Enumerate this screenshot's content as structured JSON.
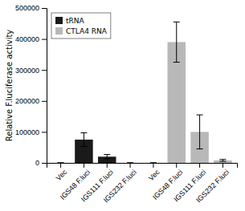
{
  "chart_data": {
    "type": "bar",
    "categories": [
      "Vec",
      "IGS48 F.luci",
      "IGS111 F.luci",
      "IGS232 F.luci",
      "Vec",
      "IGS48 F.luci",
      "IGS111 F.luci",
      "IGS232 F.luci"
    ],
    "series": [
      {
        "name": "tRNA",
        "color": "#1a1a1a",
        "values": [
          0,
          75000,
          20000,
          0,
          null,
          null,
          null,
          null
        ],
        "errors": [
          0,
          22000,
          7000,
          0,
          null,
          null,
          null,
          null
        ]
      },
      {
        "name": "CTLA4 RNA",
        "color": "#b8b8b8",
        "values": [
          null,
          null,
          null,
          null,
          0,
          390000,
          100000,
          8000
        ],
        "errors": [
          null,
          null,
          null,
          null,
          0,
          65000,
          55000,
          3000
        ]
      }
    ],
    "ylabel": "Relative F.luciferase activity",
    "ylim": [
      0,
      500000
    ],
    "yticks": [
      0,
      100000,
      200000,
      300000,
      400000,
      500000
    ],
    "legend": "upper left"
  }
}
